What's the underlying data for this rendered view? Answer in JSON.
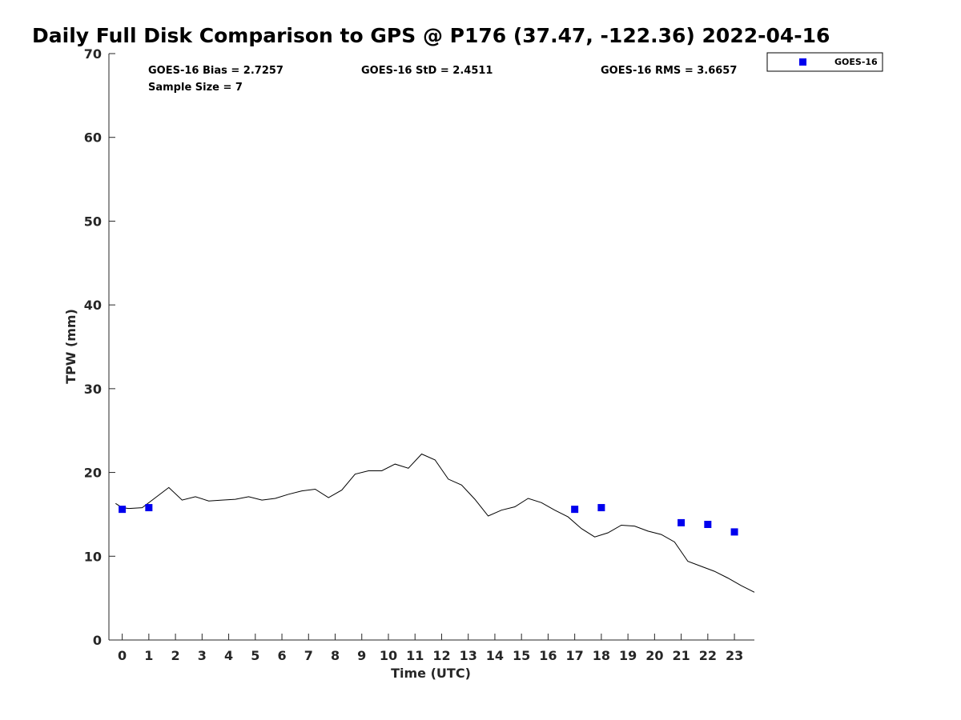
{
  "chart_data": {
    "type": "scatter",
    "title": "Daily Full Disk Comparison to GPS @ P176 (37.47, -122.36) 2022-04-16",
    "xlabel": "Time (UTC)",
    "ylabel": "TPW (mm)",
    "xlim": [
      -0.5,
      23.75
    ],
    "ylim": [
      0,
      70
    ],
    "x_ticks": [
      "0",
      "1",
      "2",
      "3",
      "4",
      "5",
      "6",
      "7",
      "8",
      "9",
      "10",
      "11",
      "12",
      "13",
      "14",
      "15",
      "16",
      "17",
      "18",
      "19",
      "20",
      "21",
      "22",
      "23"
    ],
    "y_ticks": [
      "0",
      "10",
      "20",
      "30",
      "40",
      "50",
      "60",
      "70"
    ],
    "grid": false,
    "legend_position": "top-right",
    "stats": {
      "bias": "GOES-16 Bias = 2.7257",
      "std": "GOES-16 StD = 2.4511",
      "rms": "GOES-16 RMS = 3.6657",
      "sample_size": "Sample Size = 7"
    },
    "series": [
      {
        "name": "GOES-16",
        "kind": "scatter",
        "color": "#0000ee",
        "marker": "square",
        "x": [
          0,
          1,
          17,
          18,
          21,
          22,
          23
        ],
        "y": [
          15.6,
          15.8,
          15.6,
          15.8,
          14.0,
          13.8,
          12.9
        ]
      },
      {
        "kind": "line",
        "color": "#000000",
        "x": [
          -0.25,
          0,
          0.25,
          0.75,
          1.25,
          1.75,
          2.25,
          2.75,
          3.25,
          3.75,
          4.25,
          4.75,
          5.25,
          5.75,
          6.25,
          6.75,
          7.25,
          7.75,
          8.25,
          8.75,
          9.25,
          9.75,
          10.25,
          10.75,
          11.25,
          11.75,
          12.25,
          12.75,
          13.25,
          13.75,
          14.25,
          14.75,
          15.25,
          15.75,
          16.25,
          16.75,
          17.25,
          17.75,
          18.25,
          18.75,
          19.25,
          19.75,
          20.25,
          20.75,
          21.25,
          21.75,
          22.25,
          22.75,
          23.25,
          23.75
        ],
        "y": [
          16.3,
          15.8,
          15.7,
          15.8,
          17.0,
          18.2,
          16.7,
          17.1,
          16.6,
          16.7,
          16.8,
          17.1,
          16.7,
          16.9,
          17.4,
          17.8,
          18.0,
          17.0,
          17.9,
          19.8,
          20.2,
          20.2,
          21.0,
          20.5,
          22.2,
          21.5,
          19.2,
          18.5,
          16.8,
          14.8,
          15.5,
          15.9,
          16.9,
          16.4,
          15.5,
          14.7,
          13.3,
          12.3,
          12.8,
          13.7,
          13.6,
          13.0,
          12.6,
          11.7,
          9.4,
          8.8,
          8.2,
          7.4,
          6.5,
          5.7
        ]
      }
    ]
  }
}
